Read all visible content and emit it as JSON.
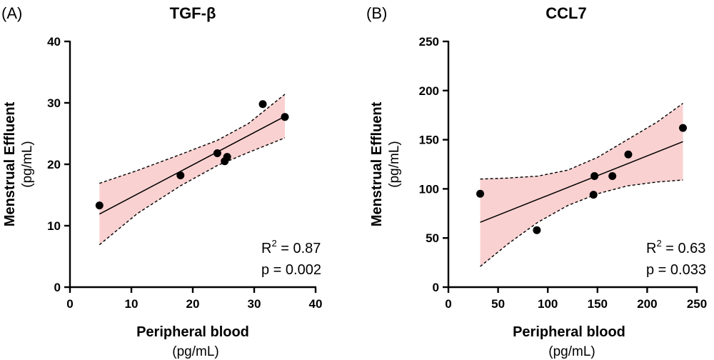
{
  "chart_data": [
    {
      "type": "scatter",
      "panel_label": "(A)",
      "title": "TGF-β",
      "xlabel": "Peripheral blood",
      "xunit": "(pg/mL)",
      "ylabel": "Menstrual Effluent",
      "yunit": "(pg/mL)",
      "xlim": [
        0,
        40
      ],
      "ylim": [
        0,
        40
      ],
      "xticks": [
        0,
        10,
        20,
        30,
        40
      ],
      "yticks": [
        0,
        10,
        20,
        30,
        40
      ],
      "points": [
        {
          "x": 4.8,
          "y": 13.3
        },
        {
          "x": 18.0,
          "y": 18.2
        },
        {
          "x": 24.0,
          "y": 21.8
        },
        {
          "x": 25.2,
          "y": 20.5
        },
        {
          "x": 25.6,
          "y": 21.2
        },
        {
          "x": 31.4,
          "y": 29.8
        },
        {
          "x": 35.0,
          "y": 27.7
        }
      ],
      "fit": {
        "x": [
          4.8,
          35.0
        ],
        "y": [
          11.9,
          27.8
        ]
      },
      "ci_upper": [
        [
          4.8,
          16.9
        ],
        [
          11,
          19.0
        ],
        [
          18,
          21.6
        ],
        [
          24,
          23.9
        ],
        [
          29,
          26.6
        ],
        [
          35,
          31.4
        ]
      ],
      "ci_lower": [
        [
          4.8,
          6.9
        ],
        [
          11,
          12.0
        ],
        [
          18,
          16.5
        ],
        [
          24,
          19.8
        ],
        [
          29,
          21.9
        ],
        [
          35,
          24.3
        ]
      ],
      "stats": {
        "r2_prefix": "R",
        "r2_sup": "2",
        "r2_value": " = 0.87",
        "p": "p = 0.002"
      }
    },
    {
      "type": "scatter",
      "panel_label": "(B)",
      "title": "CCL7",
      "xlabel": "Peripheral blood",
      "xunit": "(pg/mL)",
      "ylabel": "Menstrual Effluent",
      "yunit": "(pg/mL)",
      "xlim": [
        0,
        250
      ],
      "ylim": [
        0,
        250
      ],
      "xticks": [
        0,
        50,
        100,
        150,
        200,
        250
      ],
      "yticks": [
        0,
        50,
        100,
        150,
        200,
        250
      ],
      "points": [
        {
          "x": 32,
          "y": 95
        },
        {
          "x": 89,
          "y": 58
        },
        {
          "x": 146,
          "y": 94
        },
        {
          "x": 147,
          "y": 113
        },
        {
          "x": 165,
          "y": 113
        },
        {
          "x": 181,
          "y": 135
        },
        {
          "x": 236,
          "y": 162
        }
      ],
      "fit": {
        "x": [
          32,
          236
        ],
        "y": [
          66,
          148
        ]
      },
      "ci_upper": [
        [
          32,
          110
        ],
        [
          60,
          111
        ],
        [
          90,
          113
        ],
        [
          120,
          119
        ],
        [
          150,
          132
        ],
        [
          180,
          150
        ],
        [
          210,
          168
        ],
        [
          236,
          187
        ]
      ],
      "ci_lower": [
        [
          32,
          21
        ],
        [
          60,
          44
        ],
        [
          90,
          66
        ],
        [
          120,
          83
        ],
        [
          150,
          95
        ],
        [
          180,
          103
        ],
        [
          210,
          107
        ],
        [
          236,
          109
        ]
      ],
      "stats": {
        "r2_prefix": "R",
        "r2_sup": "2",
        "r2_value": " = 0.63",
        "p": "p = 0.033"
      }
    }
  ]
}
